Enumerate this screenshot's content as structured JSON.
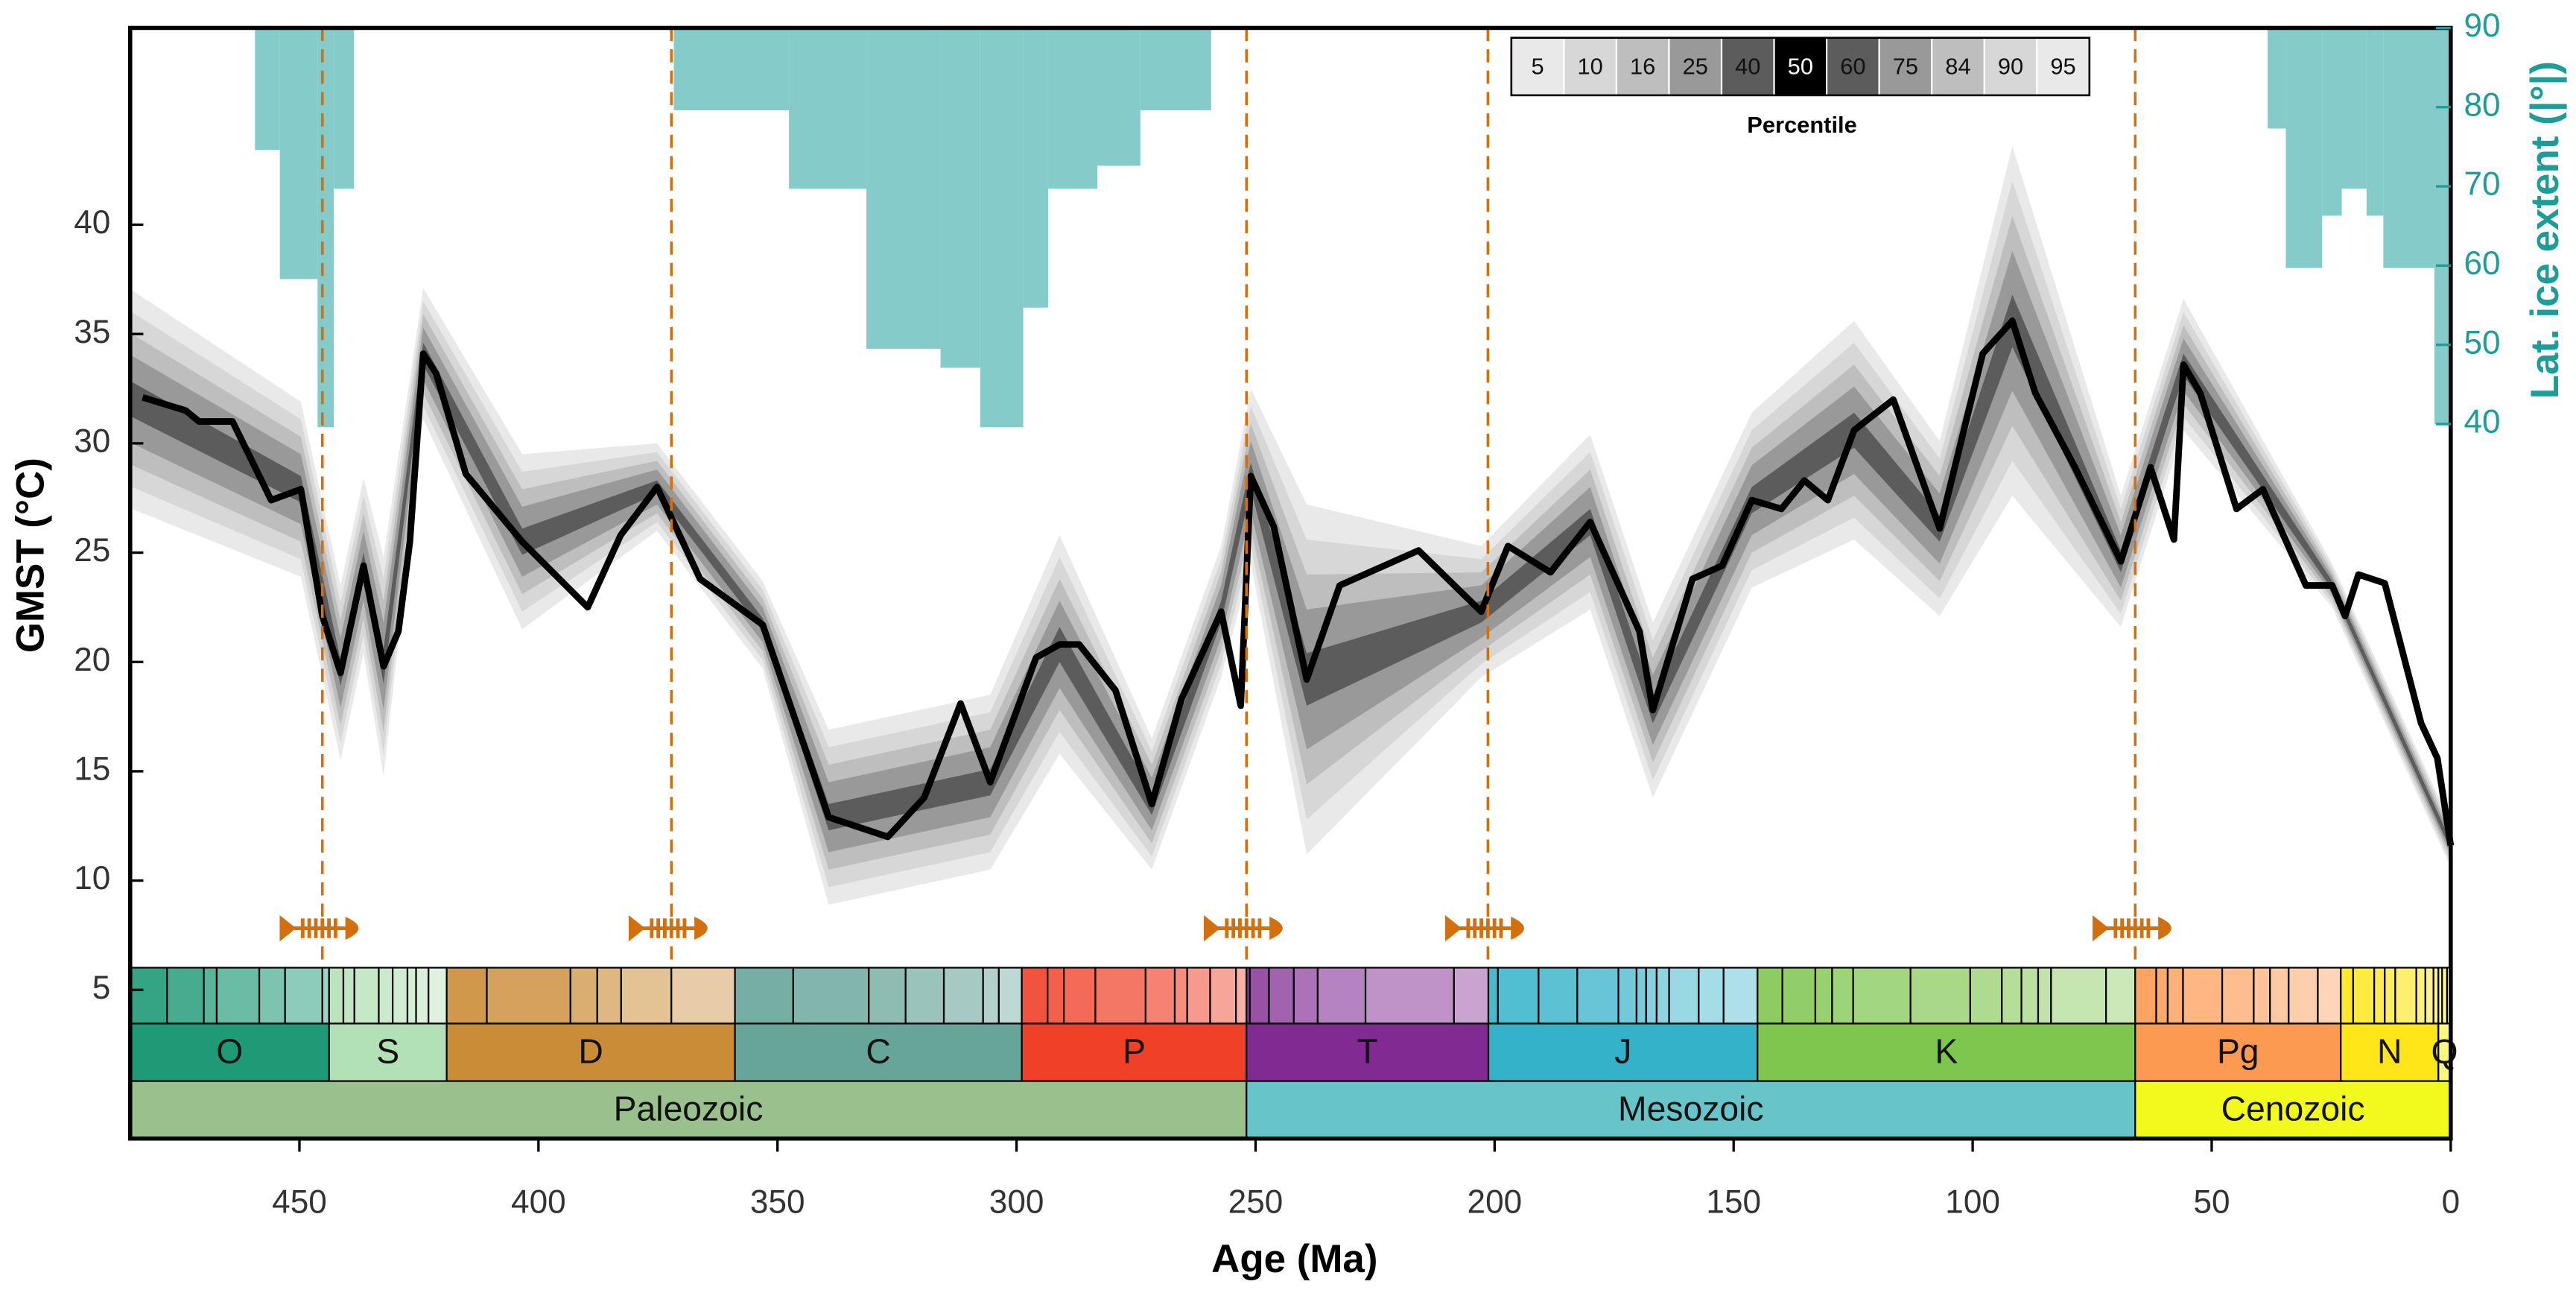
{
  "chart_data": {
    "type": "line",
    "xlabel": "Age (Ma)",
    "ylabel": "GMST (°C)",
    "y2label": "Lat. ice extent (|°|)",
    "legend_title": "Percentile",
    "xlim": [
      485.4,
      0
    ],
    "xticks": [
      450,
      400,
      350,
      300,
      250,
      200,
      150,
      100,
      50,
      0
    ],
    "ylim": [
      -1.8,
      49
    ],
    "yticks": [
      5,
      10,
      15,
      20,
      25,
      30,
      35,
      40
    ],
    "y2lim": [
      -50.2,
      90
    ],
    "y2ticks": [
      40,
      50,
      60,
      70,
      80,
      90
    ],
    "y2_color": "#1d9c98",
    "grid": false,
    "x": [
      485,
      449.7,
      441.4,
      436.6,
      432.4,
      424.1,
      403.4,
      375.2,
      353.1,
      339.3,
      305.5,
      291,
      271.7,
      257.2,
      251,
      239.3,
      202.8,
      180,
      166.9,
      146.2,
      124.8,
      106.9,
      91.7,
      69,
      62.8,
      55.9,
      24.8,
      0
    ],
    "series": [
      {
        "name": "5",
        "color": "#e9e9e9",
        "values": [
          27.0,
          23.9,
          15.5,
          20.4,
          14.8,
          31.1,
          21.5,
          26.0,
          19.7,
          8.9,
          10.5,
          15.8,
          10.5,
          19.3,
          24.5,
          11.2,
          19.3,
          22.4,
          13.8,
          23.4,
          25.6,
          22.1,
          27.6,
          21.6,
          25.9,
          30.6,
          22.5,
          10.6
        ]
      },
      {
        "name": "10",
        "color": "#d7d7d7",
        "values": [
          28.0,
          24.7,
          16.3,
          21.2,
          15.8,
          31.7,
          22.3,
          26.4,
          20.1,
          9.7,
          11.3,
          16.8,
          11.1,
          19.9,
          25.3,
          12.8,
          19.9,
          23.2,
          14.6,
          24.2,
          26.6,
          22.9,
          29.2,
          22.2,
          26.5,
          31.2,
          22.7,
          10.8
        ]
      },
      {
        "name": "16",
        "color": "#bebebe",
        "values": [
          29.0,
          25.5,
          17.1,
          22.0,
          16.8,
          32.3,
          23.1,
          26.8,
          20.5,
          10.5,
          12.1,
          17.8,
          11.7,
          20.5,
          26.1,
          14.4,
          20.5,
          24.0,
          15.4,
          25.0,
          27.6,
          23.7,
          30.8,
          22.8,
          27.1,
          31.8,
          22.9,
          11.0
        ]
      },
      {
        "name": "25",
        "color": "#999999",
        "values": [
          30.0,
          26.3,
          17.9,
          22.8,
          17.8,
          32.9,
          23.9,
          27.2,
          20.9,
          11.3,
          12.9,
          18.8,
          12.3,
          21.1,
          26.9,
          16.0,
          21.1,
          24.8,
          16.2,
          25.8,
          28.6,
          24.5,
          32.4,
          23.4,
          27.7,
          32.4,
          23.1,
          11.2
        ]
      },
      {
        "name": "40",
        "color": "#5c5c5c",
        "values": [
          31.2,
          27.3,
          18.9,
          23.8,
          19.0,
          33.6,
          24.9,
          27.7,
          21.4,
          12.3,
          13.9,
          20.0,
          13.0,
          21.8,
          27.9,
          18.0,
          21.8,
          25.8,
          17.2,
          26.8,
          29.8,
          25.5,
          34.4,
          24.1,
          28.4,
          33.1,
          23.3,
          11.4
        ]
      },
      {
        "name": "50",
        "color": "#000000",
        "x": [
          482.8,
          473.8,
          471,
          464,
          455.9,
          449.7,
          445.2,
          441.4,
          436.6,
          432.4,
          429.3,
          426.9,
          424.1,
          421.4,
          415.2,
          403.4,
          389.7,
          382.8,
          375.2,
          366.2,
          353.1,
          339.3,
          326.9,
          319.3,
          311.7,
          305.5,
          295.9,
          291,
          286.9,
          279.3,
          271.7,
          265.5,
          257.2,
          253.1,
          251,
          246.2,
          239.3,
          232.4,
          215.9,
          202.8,
          197.2,
          188.3,
          180,
          169.7,
          166.9,
          158.6,
          152.4,
          146.2,
          140,
          135.2,
          130.3,
          124.8,
          116.6,
          106.9,
          97.9,
          91.7,
          86.9,
          78.6,
          69,
          62.8,
          57.9,
          55.9,
          52.4,
          44.8,
          39.3,
          30.3,
          24.8,
          22.1,
          19.3,
          13.8,
          6.2,
          2.8,
          0
        ],
        "values": [
          32.1,
          31.5,
          31.0,
          31.0,
          27.4,
          27.9,
          22.1,
          19.5,
          24.4,
          19.8,
          21.4,
          25.5,
          34.1,
          33.2,
          28.6,
          25.5,
          22.5,
          25.8,
          28.0,
          23.8,
          21.7,
          12.9,
          12.0,
          13.8,
          18.1,
          14.5,
          20.2,
          20.8,
          20.8,
          18.7,
          13.5,
          18.3,
          22.3,
          18.0,
          28.5,
          26.2,
          19.2,
          23.5,
          25.1,
          22.3,
          25.3,
          24.1,
          26.4,
          21.4,
          17.8,
          23.8,
          24.4,
          27.4,
          27.0,
          28.3,
          27.4,
          30.6,
          32.0,
          26.1,
          34.1,
          35.6,
          32.3,
          28.9,
          24.6,
          28.9,
          25.6,
          33.6,
          32.3,
          27.0,
          27.9,
          23.5,
          23.5,
          22.1,
          24.0,
          23.6,
          17.2,
          15.6,
          11.6
        ]
      },
      {
        "name": "60",
        "color": "#5c5c5c",
        "values": [
          32.8,
          28.5,
          20.1,
          25.0,
          20.6,
          34.6,
          26.1,
          28.3,
          22.0,
          13.5,
          15.1,
          21.6,
          14.0,
          22.8,
          29.1,
          20.4,
          22.8,
          27.0,
          18.4,
          28.0,
          31.4,
          26.7,
          36.8,
          25.1,
          29.4,
          34.1,
          23.7,
          11.8
        ]
      },
      {
        "name": "75",
        "color": "#999999",
        "values": [
          34.0,
          29.5,
          21.1,
          26.0,
          21.8,
          35.3,
          27.1,
          28.8,
          22.5,
          14.5,
          16.1,
          22.8,
          14.7,
          23.5,
          30.1,
          22.4,
          23.5,
          28.0,
          19.4,
          29.0,
          32.6,
          27.7,
          38.8,
          25.8,
          30.1,
          34.8,
          23.9,
          12.0
        ]
      },
      {
        "name": "84",
        "color": "#bebebe",
        "values": [
          35.0,
          30.3,
          21.9,
          26.8,
          22.8,
          35.9,
          27.9,
          29.2,
          22.9,
          15.3,
          16.9,
          23.8,
          15.3,
          24.1,
          30.9,
          24.0,
          24.1,
          28.8,
          20.2,
          29.8,
          33.6,
          28.5,
          40.4,
          26.4,
          30.7,
          35.4,
          24.1,
          12.2
        ]
      },
      {
        "name": "90",
        "color": "#d7d7d7",
        "values": [
          36.0,
          31.1,
          22.7,
          27.6,
          23.8,
          36.5,
          28.7,
          29.6,
          23.3,
          16.1,
          17.7,
          24.8,
          15.9,
          24.7,
          31.7,
          25.6,
          24.7,
          29.6,
          21.0,
          30.6,
          34.6,
          29.3,
          42.0,
          27.0,
          31.3,
          36.0,
          24.3,
          12.4
        ]
      },
      {
        "name": "95",
        "color": "#e9e9e9",
        "values": [
          37.0,
          31.9,
          23.5,
          28.4,
          24.8,
          37.1,
          29.5,
          30.0,
          23.7,
          16.9,
          18.5,
          25.8,
          16.5,
          25.3,
          32.5,
          27.2,
          25.3,
          30.4,
          21.8,
          31.4,
          35.6,
          30.1,
          43.6,
          27.6,
          31.9,
          36.6,
          24.5,
          12.6
        ]
      }
    ],
    "ice": {
      "axis": "y2",
      "color": "#85cbca",
      "bins": [
        459.3,
        454.1,
        446.2,
        442.8,
        438.6,
        371.7,
        347.6,
        331.4,
        315.9,
        307.6,
        298.6,
        293.4,
        283.1,
        274.1,
        259.3,
        38.3,
        34.5,
        26.9,
        22.8,
        17.6,
        14.1,
        3.4,
        0
      ],
      "values": [
        74.6,
        58.3,
        39.6,
        69.7,
        null,
        79.6,
        69.7,
        49.5,
        47.1,
        39.6,
        54.7,
        69.7,
        72.6,
        79.6,
        null,
        77.3,
        59.7,
        66.3,
        69.7,
        66.3,
        59.7,
        40
      ]
    },
    "extinctions": {
      "color": "#d2700f",
      "values": [
        445.2,
        372.2,
        251.9,
        201.4,
        66
      ]
    },
    "periods": [
      {
        "name": "O",
        "start": 485.4,
        "end": 443.8,
        "color": "#1f9a77",
        "stages": [
          485.4,
          477.7,
          470,
          467.3,
          458.4,
          453,
          445.2
        ]
      },
      {
        "name": "S",
        "start": 443.8,
        "end": 419.2,
        "color": "#b3e1b6",
        "stages": [
          443.8,
          440.8,
          438.5,
          433.4,
          430.5,
          427.4,
          425.6,
          423
        ]
      },
      {
        "name": "D",
        "start": 419.2,
        "end": 358.9,
        "color": "#cb8c37",
        "stages": [
          419.2,
          410.8,
          393.3,
          387.7,
          382.7,
          372.2
        ]
      },
      {
        "name": "C",
        "start": 358.9,
        "end": 298.9,
        "color": "#67a599",
        "stages": [
          358.9,
          346.7,
          330.9,
          323.2,
          315.2,
          307,
          303.7
        ]
      },
      {
        "name": "P",
        "start": 298.9,
        "end": 251.9,
        "color": "#f04028",
        "stages": [
          298.9,
          293.5,
          290.1,
          283.5,
          273,
          266.9,
          264.3,
          259.5,
          254.1
        ]
      },
      {
        "name": "T",
        "start": 251.9,
        "end": 201.3,
        "color": "#812b92",
        "stages": [
          251.9,
          251.2,
          247.2,
          242,
          237,
          227,
          208.5
        ]
      },
      {
        "name": "J",
        "start": 201.3,
        "end": 145,
        "color": "#34b2c9",
        "stages": [
          201.3,
          199.3,
          190.8,
          182.7,
          174.1,
          170.3,
          168.3,
          166.1,
          163.5,
          157.3,
          152.1
        ]
      },
      {
        "name": "K",
        "start": 145,
        "end": 66,
        "color": "#7fc64e",
        "stages": [
          145,
          139.8,
          132.9,
          129.4,
          125,
          113,
          100.5,
          93.9,
          89.8,
          86.3,
          83.6,
          72.1
        ]
      },
      {
        "name": "Pg",
        "start": 66,
        "end": 23,
        "color": "#fd9a52",
        "stages": [
          66,
          61.6,
          59.2,
          56,
          47.8,
          41.2,
          37.8,
          33.9,
          27.8
        ]
      },
      {
        "name": "N",
        "start": 23,
        "end": 2.58,
        "color": "#ffe619",
        "stages": [
          23,
          20.4,
          16,
          13.8,
          11.6,
          7.2,
          5.3,
          3.6
        ]
      },
      {
        "name": "Q",
        "start": 2.58,
        "end": 0,
        "color": "#f9f97f",
        "stages": [
          2.58,
          1.8,
          0.77,
          0.13,
          0.0117
        ]
      }
    ],
    "eras": [
      {
        "name": "Paleozoic",
        "start": 485.4,
        "end": 251.9,
        "color": "#99c08d"
      },
      {
        "name": "Mesozoic",
        "start": 251.9,
        "end": 66,
        "color": "#67c5ca"
      },
      {
        "name": "Cenozoic",
        "start": 66,
        "end": 0,
        "color": "#f2f91d"
      }
    ]
  }
}
